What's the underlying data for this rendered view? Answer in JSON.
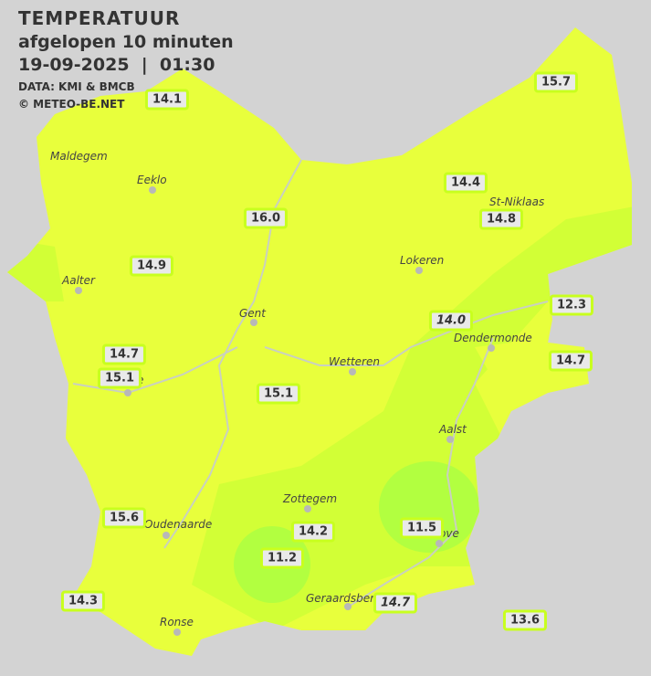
{
  "header": {
    "title": "TEMPERATUUR",
    "subtitle": "afgelopen 10 minuten",
    "datetime": "19-09-2025  |  01:30",
    "source": "DATA: KMI & BMCB",
    "copyright": "© METEO-BE.NET"
  },
  "colors": {
    "background": "#d3d3d3",
    "warm": "#e8ff3c",
    "mild": "#d2ff36",
    "cool": "#b2ff40",
    "label_border": "#c8ff1e"
  },
  "cities": [
    {
      "name": "Maldegem"
    },
    {
      "name": "Eeklo"
    },
    {
      "name": "St-Niklaas"
    },
    {
      "name": "Lokeren"
    },
    {
      "name": "Aalter"
    },
    {
      "name": "Gent"
    },
    {
      "name": "Dendermonde"
    },
    {
      "name": "Wetteren"
    },
    {
      "name": "Aalst"
    },
    {
      "name": "Zottegem"
    },
    {
      "name": "Oudenaarde"
    },
    {
      "name": "Geraardsberg"
    },
    {
      "name": "Ronse"
    },
    {
      "name": "ove"
    },
    {
      "name": "e"
    }
  ],
  "temperatures": [
    {
      "value": "14.1"
    },
    {
      "value": "15.7"
    },
    {
      "value": "14.4"
    },
    {
      "value": "14.8"
    },
    {
      "value": "16.0"
    },
    {
      "value": "14.9"
    },
    {
      "value": "12.3"
    },
    {
      "value": "14.0",
      "italic": true
    },
    {
      "value": "14.7"
    },
    {
      "value": "14.7"
    },
    {
      "value": "15.1"
    },
    {
      "value": "15.1"
    },
    {
      "value": "15.6"
    },
    {
      "value": "14.2"
    },
    {
      "value": "11.5"
    },
    {
      "value": "11.2"
    },
    {
      "value": "14.7",
      "italic": true
    },
    {
      "value": "14.3"
    },
    {
      "value": "13.6"
    }
  ]
}
